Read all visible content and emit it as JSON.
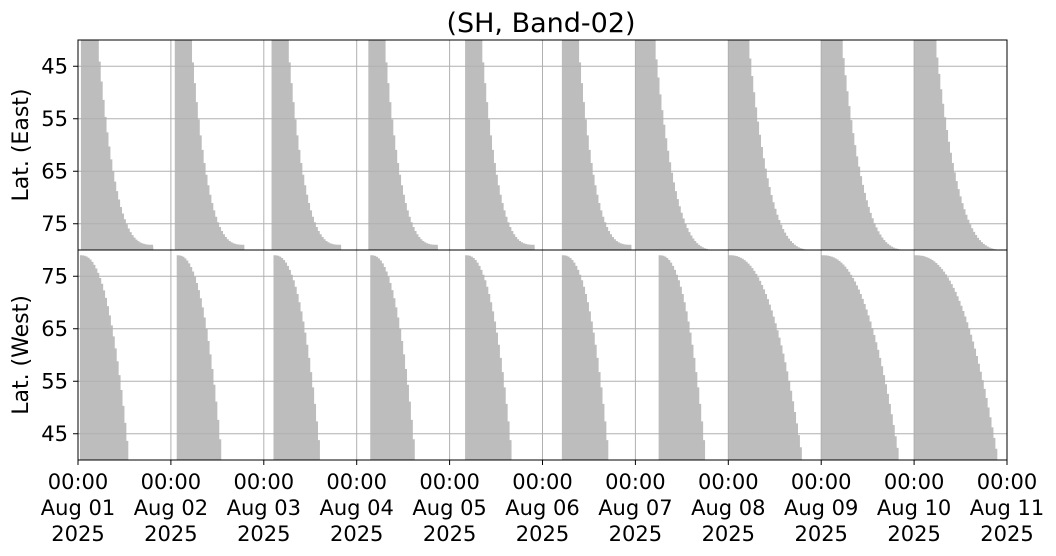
{
  "chart_data": {
    "type": "area",
    "title": "(SH, Band-02)",
    "panels": [
      {
        "name": "east",
        "ylabel": "Lat. (East)",
        "ylim": [
          40,
          80
        ],
        "y_inverted": true,
        "yticks": [
          45,
          55,
          65,
          75
        ],
        "series": [
          {
            "day": 1,
            "start": "Aug 01 00:45",
            "fill_start_lat": 78,
            "end": "Aug 01 19:30",
            "end_lat": 79
          },
          {
            "day": 2,
            "start": "Aug 02 01:00",
            "fill_start_lat": 78,
            "end": "Aug 02 19:00",
            "end_lat": 79
          },
          {
            "day": 3,
            "start": "Aug 03 02:00",
            "fill_start_lat": 79,
            "end": "Aug 03 20:00",
            "end_lat": 79
          },
          {
            "day": 4,
            "start": "Aug 04 03:00",
            "fill_start_lat": 79,
            "end": "Aug 04 21:00",
            "end_lat": 79
          },
          {
            "day": 5,
            "start": "Aug 05 04:00",
            "fill_start_lat": 79,
            "end": "Aug 05 22:00",
            "end_lat": 79
          },
          {
            "day": 6,
            "start": "Aug 06 05:00",
            "fill_start_lat": 79,
            "end": "Aug 06 23:00",
            "end_lat": 79
          },
          {
            "day": 7,
            "start": "Aug 07 00:00",
            "fill_start_lat": 79,
            "end": "Aug 07 21:30",
            "end_lat": 80
          },
          {
            "day": 8,
            "start": "Aug 08 00:00",
            "fill_start_lat": 79,
            "end": "Aug 08 22:30",
            "end_lat": 80
          },
          {
            "day": 9,
            "start": "Aug 09 00:00",
            "fill_start_lat": 79,
            "end": "Aug 09 23:00",
            "end_lat": 80
          },
          {
            "day": 10,
            "start": "Aug 10 00:00",
            "fill_start_lat": 79,
            "end": "Aug 10 23:59",
            "end_lat": 80
          }
        ]
      },
      {
        "name": "west",
        "ylabel": "Lat. (West)",
        "ylim": [
          80,
          40
        ],
        "y_inverted": false,
        "yticks": [
          75,
          65,
          55,
          45
        ],
        "series": [
          {
            "day": 1,
            "start": "Aug 01 00:30",
            "top_lat": 79,
            "fill_end": "Aug 01 13:00"
          },
          {
            "day": 2,
            "start": "Aug 02 01:30",
            "top_lat": 79,
            "fill_end": "Aug 02 13:00"
          },
          {
            "day": 3,
            "start": "Aug 03 02:30",
            "top_lat": 79,
            "fill_end": "Aug 03 14:30"
          },
          {
            "day": 4,
            "start": "Aug 04 03:30",
            "top_lat": 79,
            "fill_end": "Aug 04 15:00"
          },
          {
            "day": 5,
            "start": "Aug 05 04:00",
            "top_lat": 79,
            "fill_end": "Aug 05 16:00"
          },
          {
            "day": 6,
            "start": "Aug 06 05:00",
            "top_lat": 79,
            "fill_end": "Aug 06 17:00"
          },
          {
            "day": 7,
            "start": "Aug 07 06:00",
            "top_lat": 79,
            "fill_end": "Aug 07 18:00"
          },
          {
            "day": 8,
            "start": "Aug 08 00:00",
            "top_lat": 79,
            "fill_end": "Aug 08 19:00"
          },
          {
            "day": 9,
            "start": "Aug 09 00:00",
            "top_lat": 79,
            "fill_end": "Aug 09 20:00"
          },
          {
            "day": 10,
            "start": "Aug 10 00:00",
            "top_lat": 79,
            "fill_end": "Aug 10 21:30"
          }
        ]
      }
    ],
    "xlim": [
      "Aug 01 2025 00:00",
      "Aug 11 2025 00:00"
    ],
    "xticks": [
      {
        "time": "00:00",
        "date": "Aug 01",
        "year": "2025"
      },
      {
        "time": "00:00",
        "date": "Aug 02",
        "year": "2025"
      },
      {
        "time": "00:00",
        "date": "Aug 03",
        "year": "2025"
      },
      {
        "time": "00:00",
        "date": "Aug 04",
        "year": "2025"
      },
      {
        "time": "00:00",
        "date": "Aug 05",
        "year": "2025"
      },
      {
        "time": "00:00",
        "date": "Aug 06",
        "year": "2025"
      },
      {
        "time": "00:00",
        "date": "Aug 07",
        "year": "2025"
      },
      {
        "time": "00:00",
        "date": "Aug 08",
        "year": "2025"
      },
      {
        "time": "00:00",
        "date": "Aug 09",
        "year": "2025"
      },
      {
        "time": "00:00",
        "date": "Aug 10",
        "year": "2025"
      },
      {
        "time": "00:00",
        "date": "Aug 11",
        "year": "2025"
      }
    ],
    "grid": true,
    "fill_color": "#bdbdbd",
    "grid_color": "#b0b0b0"
  }
}
